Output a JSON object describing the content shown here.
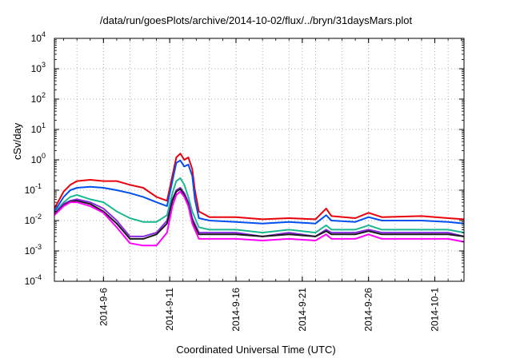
{
  "chart_data": {
    "type": "line",
    "title": "/data/run/goesPlots/archive/2014-10-02/flux/../bryn/31daysMars.plot",
    "xlabel": "Coordinated Universal Time (UTC)",
    "ylabel": "cSv/day",
    "yscale": "log",
    "ylim_exp": [
      -4,
      4
    ],
    "ytick_labels": [
      {
        "base": "10",
        "exp": "-4"
      },
      {
        "base": "10",
        "exp": "-3"
      },
      {
        "base": "10",
        "exp": "-2"
      },
      {
        "base": "10",
        "exp": "-1"
      },
      {
        "base": "10",
        "exp": "0"
      },
      {
        "base": "10",
        "exp": "1"
      },
      {
        "base": "10",
        "exp": "2"
      },
      {
        "base": "10",
        "exp": "3"
      },
      {
        "base": "10",
        "exp": "4"
      }
    ],
    "xlim_day": [
      2.3,
      33.2
    ],
    "xticks": [
      {
        "label": "2014-9-6",
        "day": 6
      },
      {
        "label": "2014-9-11",
        "day": 11
      },
      {
        "label": "2014-9-16",
        "day": 16
      },
      {
        "label": "2014-9-21",
        "day": 21
      },
      {
        "label": "2014-9-26",
        "day": 26
      },
      {
        "label": "2014-10-1",
        "day": 31
      }
    ],
    "grid": true,
    "series": [
      {
        "color": "#e8000b",
        "points": [
          [
            2.3,
            0.025
          ],
          [
            3,
            0.09
          ],
          [
            3.5,
            0.15
          ],
          [
            4,
            0.2
          ],
          [
            5,
            0.22
          ],
          [
            6,
            0.2
          ],
          [
            7,
            0.2
          ],
          [
            8,
            0.15
          ],
          [
            9,
            0.12
          ],
          [
            10,
            0.06
          ],
          [
            10.8,
            0.045
          ],
          [
            11.2,
            0.3
          ],
          [
            11.5,
            1.2
          ],
          [
            11.8,
            1.6
          ],
          [
            12.1,
            1.0
          ],
          [
            12.4,
            1.2
          ],
          [
            12.7,
            0.5
          ],
          [
            12.9,
            0.1
          ],
          [
            13.2,
            0.02
          ],
          [
            14,
            0.013
          ],
          [
            16,
            0.013
          ],
          [
            18,
            0.011
          ],
          [
            20,
            0.012
          ],
          [
            22,
            0.011
          ],
          [
            22.8,
            0.025
          ],
          [
            23.2,
            0.014
          ],
          [
            25,
            0.012
          ],
          [
            26,
            0.018
          ],
          [
            27,
            0.013
          ],
          [
            30,
            0.014
          ],
          [
            32,
            0.012
          ],
          [
            33.2,
            0.011
          ]
        ]
      },
      {
        "color": "#0050f0",
        "points": [
          [
            2.3,
            0.02
          ],
          [
            3,
            0.06
          ],
          [
            3.5,
            0.1
          ],
          [
            4,
            0.12
          ],
          [
            5,
            0.13
          ],
          [
            6,
            0.12
          ],
          [
            7,
            0.1
          ],
          [
            8,
            0.08
          ],
          [
            9,
            0.06
          ],
          [
            10,
            0.04
          ],
          [
            10.8,
            0.03
          ],
          [
            11.2,
            0.2
          ],
          [
            11.5,
            0.8
          ],
          [
            11.8,
            0.95
          ],
          [
            12.1,
            0.6
          ],
          [
            12.4,
            0.7
          ],
          [
            12.7,
            0.3
          ],
          [
            12.9,
            0.05
          ],
          [
            13.2,
            0.012
          ],
          [
            14,
            0.01
          ],
          [
            16,
            0.009
          ],
          [
            18,
            0.008
          ],
          [
            20,
            0.009
          ],
          [
            22,
            0.008
          ],
          [
            22.8,
            0.015
          ],
          [
            23.2,
            0.01
          ],
          [
            25,
            0.009
          ],
          [
            26,
            0.013
          ],
          [
            27,
            0.01
          ],
          [
            30,
            0.01
          ],
          [
            32,
            0.009
          ],
          [
            33.2,
            0.008
          ]
        ]
      },
      {
        "color": "#1ab890",
        "points": [
          [
            2.3,
            0.018
          ],
          [
            3,
            0.04
          ],
          [
            3.5,
            0.06
          ],
          [
            4,
            0.07
          ],
          [
            5,
            0.05
          ],
          [
            6,
            0.04
          ],
          [
            7,
            0.02
          ],
          [
            8,
            0.012
          ],
          [
            9,
            0.009
          ],
          [
            10,
            0.009
          ],
          [
            10.8,
            0.015
          ],
          [
            11.2,
            0.08
          ],
          [
            11.5,
            0.2
          ],
          [
            11.8,
            0.25
          ],
          [
            12.1,
            0.15
          ],
          [
            12.4,
            0.06
          ],
          [
            12.7,
            0.02
          ],
          [
            13.2,
            0.006
          ],
          [
            14,
            0.005
          ],
          [
            16,
            0.005
          ],
          [
            18,
            0.004
          ],
          [
            20,
            0.005
          ],
          [
            22,
            0.004
          ],
          [
            22.8,
            0.007
          ],
          [
            23.2,
            0.005
          ],
          [
            25,
            0.005
          ],
          [
            26,
            0.007
          ],
          [
            27,
            0.005
          ],
          [
            30,
            0.005
          ],
          [
            32,
            0.005
          ],
          [
            33.2,
            0.004
          ]
        ]
      },
      {
        "color": "#8a2be2",
        "points": [
          [
            2.3,
            0.017
          ],
          [
            3,
            0.035
          ],
          [
            3.5,
            0.045
          ],
          [
            4,
            0.05
          ],
          [
            5,
            0.04
          ],
          [
            6,
            0.025
          ],
          [
            7,
            0.01
          ],
          [
            8,
            0.003
          ],
          [
            9,
            0.003
          ],
          [
            10,
            0.004
          ],
          [
            10.8,
            0.01
          ],
          [
            11.2,
            0.05
          ],
          [
            11.5,
            0.1
          ],
          [
            11.8,
            0.12
          ],
          [
            12.1,
            0.08
          ],
          [
            12.4,
            0.04
          ],
          [
            12.7,
            0.012
          ],
          [
            13.2,
            0.004
          ],
          [
            14,
            0.004
          ],
          [
            16,
            0.004
          ],
          [
            18,
            0.003
          ],
          [
            20,
            0.004
          ],
          [
            22,
            0.003
          ],
          [
            22.8,
            0.005
          ],
          [
            23.2,
            0.004
          ],
          [
            25,
            0.004
          ],
          [
            26,
            0.005
          ],
          [
            27,
            0.004
          ],
          [
            30,
            0.004
          ],
          [
            32,
            0.004
          ],
          [
            33.2,
            0.003
          ]
        ]
      },
      {
        "color": "#1a1a1a",
        "points": [
          [
            2.3,
            0.016
          ],
          [
            3,
            0.032
          ],
          [
            3.5,
            0.042
          ],
          [
            4,
            0.045
          ],
          [
            5,
            0.035
          ],
          [
            6,
            0.02
          ],
          [
            7,
            0.008
          ],
          [
            8,
            0.0025
          ],
          [
            9,
            0.0025
          ],
          [
            10,
            0.0035
          ],
          [
            10.8,
            0.008
          ],
          [
            11.2,
            0.045
          ],
          [
            11.5,
            0.09
          ],
          [
            11.8,
            0.11
          ],
          [
            12.1,
            0.07
          ],
          [
            12.4,
            0.035
          ],
          [
            12.7,
            0.01
          ],
          [
            13.2,
            0.0035
          ],
          [
            14,
            0.0035
          ],
          [
            16,
            0.0035
          ],
          [
            18,
            0.003
          ],
          [
            20,
            0.0035
          ],
          [
            22,
            0.003
          ],
          [
            22.8,
            0.0045
          ],
          [
            23.2,
            0.0035
          ],
          [
            25,
            0.0035
          ],
          [
            26,
            0.0045
          ],
          [
            27,
            0.0035
          ],
          [
            30,
            0.0035
          ],
          [
            32,
            0.0035
          ],
          [
            33.2,
            0.003
          ]
        ]
      },
      {
        "color": "#ff00ff",
        "points": [
          [
            2.3,
            0.015
          ],
          [
            3,
            0.03
          ],
          [
            3.5,
            0.04
          ],
          [
            4,
            0.04
          ],
          [
            5,
            0.03
          ],
          [
            6,
            0.018
          ],
          [
            7,
            0.006
          ],
          [
            8,
            0.0018
          ],
          [
            9,
            0.0015
          ],
          [
            10,
            0.0015
          ],
          [
            10.8,
            0.004
          ],
          [
            11.2,
            0.03
          ],
          [
            11.5,
            0.07
          ],
          [
            11.8,
            0.09
          ],
          [
            12.1,
            0.06
          ],
          [
            12.4,
            0.03
          ],
          [
            12.7,
            0.008
          ],
          [
            13.2,
            0.0025
          ],
          [
            14,
            0.0025
          ],
          [
            16,
            0.0025
          ],
          [
            18,
            0.0022
          ],
          [
            20,
            0.0025
          ],
          [
            22,
            0.0022
          ],
          [
            22.8,
            0.0035
          ],
          [
            23.2,
            0.0025
          ],
          [
            25,
            0.0025
          ],
          [
            26,
            0.0035
          ],
          [
            27,
            0.0025
          ],
          [
            30,
            0.0025
          ],
          [
            32,
            0.0025
          ],
          [
            33.2,
            0.002
          ]
        ]
      }
    ]
  }
}
